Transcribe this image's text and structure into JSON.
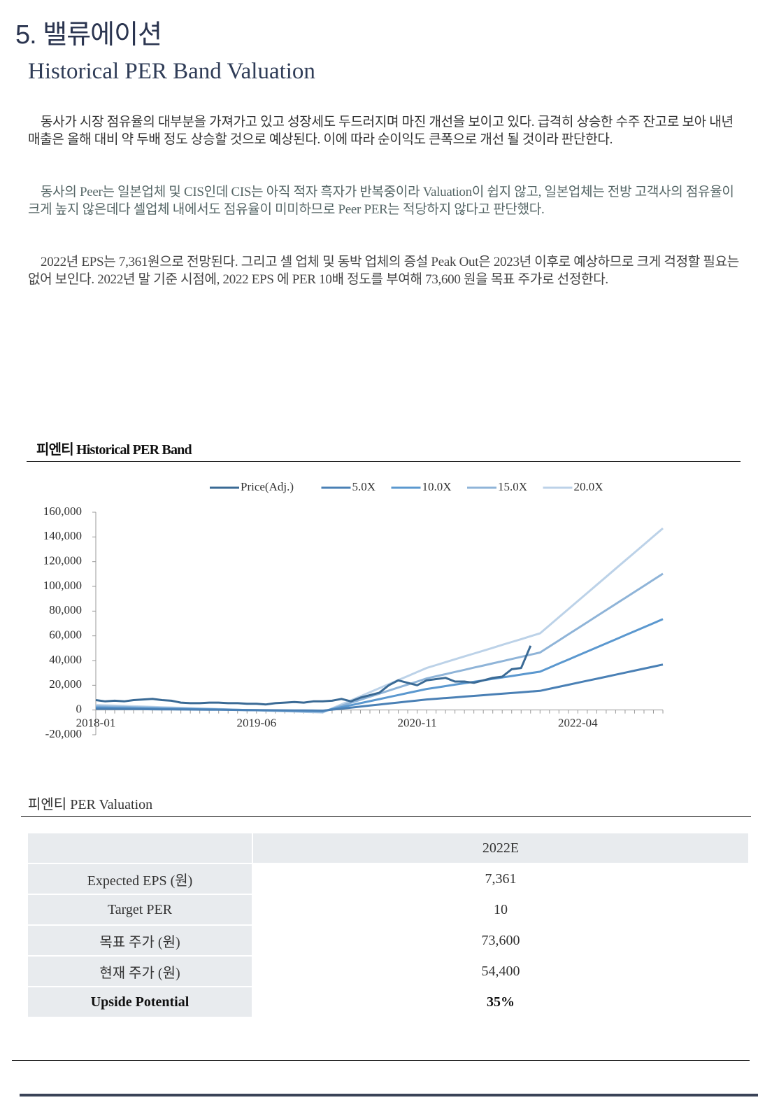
{
  "header": {
    "section": "5. 밸류에이션",
    "title": "Historical PER Band Valuation"
  },
  "paragraphs": [
    "동사가 시장 점유율의 대부분을 가져가고 있고 성장세도 두드러지며 마진 개선을 보이고 있다. 급격히 상승한 수주 잔고로 보아 내년 매출은 올해 대비 약 두배 정도 상승할 것으로 예상된다. 이에 따라 순이익도 큰폭으로 개선 될 것이라 판단한다.",
    "동사의 Peer는 일본업체 및 CIS인데 CIS는 아직 적자 흑자가 반복중이라 Valuation이 쉽지 않고, 일본업체는 전방 고객사의 점유율이 크게 높지 않은데다 셀업체 내에서도 점유율이 미미하므로 Peer PER는 적당하지 않다고 판단했다.",
    "2022년 EPS는 7,361원으로 전망된다. 그리고 셀 업체 및 동박 업체의 증설 Peak Out은 2023년 이후로 예상하므로 크게 걱정할 필요는 없어 보인다. 2022년 말 기준 시점에, 2022 EPS 에 PER 10배 정도를 부여해 73,600 원을 목표 주가로 선정한다."
  ],
  "chart_data": {
    "type": "line",
    "title": "피엔티 Historical PER Band",
    "categories": [
      "2018-01",
      null,
      null,
      null,
      null,
      null,
      null,
      null,
      null,
      null,
      null,
      null,
      null,
      null,
      null,
      null,
      null,
      "2019-06",
      null,
      null,
      null,
      null,
      null,
      null,
      null,
      null,
      null,
      null,
      null,
      null,
      null,
      null,
      null,
      null,
      "2020-11",
      null,
      null,
      null,
      null,
      null,
      null,
      null,
      null,
      null,
      null,
      null,
      null,
      null,
      null,
      null,
      null,
      "2022-04",
      null,
      null,
      null,
      null,
      null,
      null,
      null,
      null,
      null
    ],
    "series": [
      {
        "name": "Price(Adj.)",
        "color": "#3a6a95",
        "values": [
          8000,
          7000,
          7500,
          7000,
          8000,
          8500,
          9000,
          8000,
          7500,
          6000,
          5500,
          5500,
          6000,
          6000,
          5500,
          5500,
          5000,
          5000,
          4500,
          5500,
          6000,
          6500,
          6000,
          7000,
          7000,
          7500,
          9000,
          7000,
          10000,
          12000,
          14000,
          20000,
          24000,
          22000,
          20000,
          24000,
          25000,
          26000,
          23000,
          23000,
          22000,
          24000,
          26000,
          27000,
          33000,
          34000,
          52000,
          null,
          null,
          null,
          null,
          null,
          null,
          null,
          null,
          null,
          null,
          null,
          null,
          null,
          null
        ]
      },
      {
        "name": "5.0X",
        "color": "#4a80b5",
        "values": [
          1000,
          940,
          880,
          820,
          750,
          690,
          630,
          560,
          500,
          440,
          380,
          310,
          250,
          190,
          130,
          60,
          0,
          -60,
          -130,
          -190,
          -250,
          -310,
          -380,
          -440,
          -500,
          320,
          1140,
          1950,
          2770,
          3590,
          4410,
          5230,
          6050,
          6860,
          7680,
          8500,
          9080,
          9670,
          10250,
          10830,
          11420,
          12000,
          12580,
          13170,
          13750,
          14330,
          14920,
          15500,
          17130,
          18770,
          20400,
          22040,
          23670,
          25310,
          26940,
          28580,
          30210,
          31850,
          33480,
          35120,
          36750
        ]
      },
      {
        "name": "10.0X",
        "color": "#5b98cf",
        "values": [
          2000,
          1880,
          1760,
          1640,
          1500,
          1380,
          1260,
          1120,
          1000,
          880,
          760,
          620,
          500,
          380,
          260,
          120,
          0,
          -120,
          -260,
          -380,
          -500,
          -620,
          -760,
          -880,
          -1000,
          640,
          2280,
          3900,
          5540,
          7180,
          8820,
          10460,
          12100,
          13720,
          15360,
          17000,
          18160,
          19340,
          20500,
          21660,
          22840,
          24000,
          25160,
          26340,
          27500,
          28660,
          29840,
          31000,
          34260,
          37540,
          40800,
          44080,
          47340,
          50620,
          53880,
          57160,
          60420,
          63700,
          66960,
          70240,
          73500
        ]
      },
      {
        "name": "15.0X",
        "color": "#8fb4d8",
        "values": [
          3000,
          2820,
          2640,
          2460,
          2250,
          2070,
          1890,
          1680,
          1500,
          1320,
          1140,
          930,
          750,
          570,
          390,
          180,
          0,
          -180,
          -390,
          -570,
          -750,
          -930,
          -1140,
          -1320,
          -1500,
          960,
          3420,
          5850,
          8310,
          10770,
          13230,
          15690,
          18150,
          20580,
          23040,
          25500,
          27240,
          29010,
          30750,
          32490,
          34260,
          36000,
          37740,
          39510,
          41250,
          42990,
          44760,
          46500,
          51390,
          56310,
          61200,
          66120,
          71010,
          75930,
          80820,
          85740,
          90630,
          95550,
          100440,
          105360,
          110250
        ]
      },
      {
        "name": "20.0X",
        "color": "#bcd2e8",
        "values": [
          4000,
          3760,
          3520,
          3280,
          3000,
          2760,
          2520,
          2240,
          2000,
          1760,
          1520,
          1240,
          1000,
          760,
          520,
          240,
          0,
          -240,
          -520,
          -760,
          -1000,
          -1240,
          -1520,
          -1760,
          -2000,
          1280,
          4560,
          7800,
          11080,
          14360,
          17640,
          20920,
          24200,
          27440,
          30720,
          34000,
          36320,
          38680,
          41000,
          43320,
          45680,
          48000,
          50320,
          52680,
          55000,
          57320,
          59680,
          62000,
          68520,
          75080,
          81600,
          88160,
          94680,
          101240,
          107760,
          114320,
          120840,
          127400,
          133920,
          140480,
          147000
        ]
      }
    ],
    "ylim": [
      -20000,
      160000
    ],
    "yticks": [
      {
        "value": -20000,
        "label": "-20,000"
      },
      0,
      {
        "value": 20000,
        "label": "20,000"
      },
      {
        "value": 40000,
        "label": "40,000"
      },
      {
        "value": 60000,
        "label": "60,000"
      },
      {
        "value": 80000,
        "label": "80,000"
      },
      {
        "value": 100000,
        "label": "100,000"
      },
      {
        "value": 120000,
        "label": "120,000"
      },
      {
        "value": 140000,
        "label": "140,000"
      },
      {
        "value": 160000,
        "label": "160,000"
      }
    ],
    "legend": "top"
  },
  "table": {
    "title": "피엔티 PER Valuation",
    "columns": [
      "2022E"
    ],
    "rows": [
      [
        "Expected EPS (원)",
        "7,361"
      ],
      [
        "Target PER",
        "10"
      ],
      [
        "목표 주가 (원)",
        "73,600"
      ],
      [
        "현재 주가 (원)",
        "54,400"
      ],
      [
        "Upside Potential",
        "35%"
      ]
    ]
  }
}
